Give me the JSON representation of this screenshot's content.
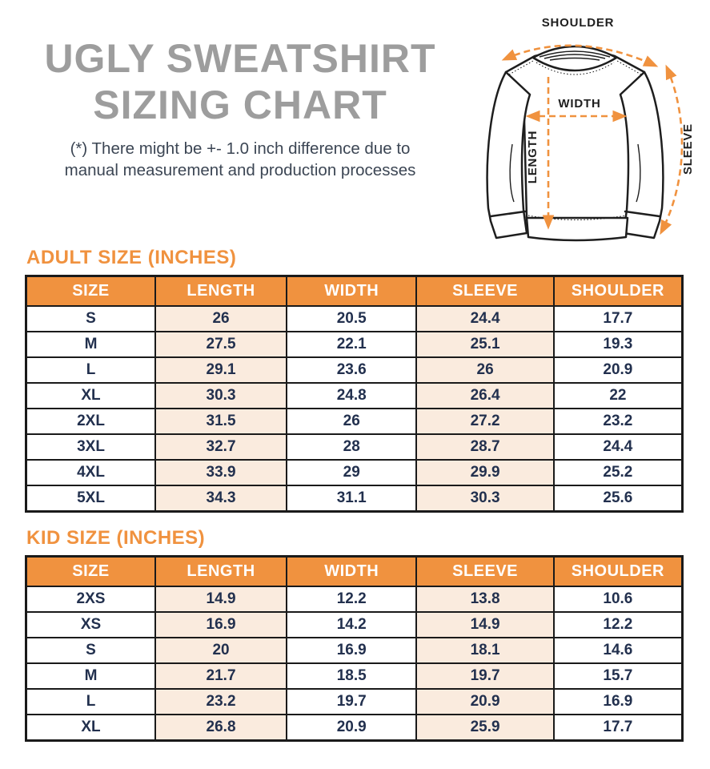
{
  "title": {
    "line1": "UGLY SWEATSHIRT",
    "line2": "SIZING CHART"
  },
  "disclaimer": {
    "line1": "(*) There might be +- 1.0 inch difference due to",
    "line2": "manual measurement and production processes"
  },
  "diagram": {
    "labels": {
      "shoulder": "SHOULDER",
      "width": "WIDTH",
      "length": "LENGTH",
      "sleeve": "SLEEVE"
    }
  },
  "adult_table": {
    "heading": "ADULT SIZE (INCHES)",
    "columns": [
      "SIZE",
      "LENGTH",
      "WIDTH",
      "SLEEVE",
      "SHOULDER"
    ],
    "rows": [
      [
        "S",
        "26",
        "20.5",
        "24.4",
        "17.7"
      ],
      [
        "M",
        "27.5",
        "22.1",
        "25.1",
        "19.3"
      ],
      [
        "L",
        "29.1",
        "23.6",
        "26",
        "20.9"
      ],
      [
        "XL",
        "30.3",
        "24.8",
        "26.4",
        "22"
      ],
      [
        "2XL",
        "31.5",
        "26",
        "27.2",
        "23.2"
      ],
      [
        "3XL",
        "32.7",
        "28",
        "28.7",
        "24.4"
      ],
      [
        "4XL",
        "33.9",
        "29",
        "29.9",
        "25.2"
      ],
      [
        "5XL",
        "34.3",
        "31.1",
        "30.3",
        "25.6"
      ]
    ]
  },
  "kid_table": {
    "heading": "KID SIZE (INCHES)",
    "columns": [
      "SIZE",
      "LENGTH",
      "WIDTH",
      "SLEEVE",
      "SHOULDER"
    ],
    "rows": [
      [
        "2XS",
        "14.9",
        "12.2",
        "13.8",
        "10.6"
      ],
      [
        "XS",
        "16.9",
        "14.2",
        "14.9",
        "12.2"
      ],
      [
        "S",
        "20",
        "16.9",
        "18.1",
        "14.6"
      ],
      [
        "M",
        "21.7",
        "18.5",
        "19.7",
        "15.7"
      ],
      [
        "L",
        "23.2",
        "19.7",
        "20.9",
        "16.9"
      ],
      [
        "XL",
        "26.8",
        "20.9",
        "25.9",
        "17.7"
      ]
    ]
  },
  "colors": {
    "accent_orange": "#f0923f",
    "peach_cell": "#faebde",
    "navy_text": "#22304e",
    "title_gray": "#9d9d9d",
    "table_border": "#1a1a1a"
  }
}
